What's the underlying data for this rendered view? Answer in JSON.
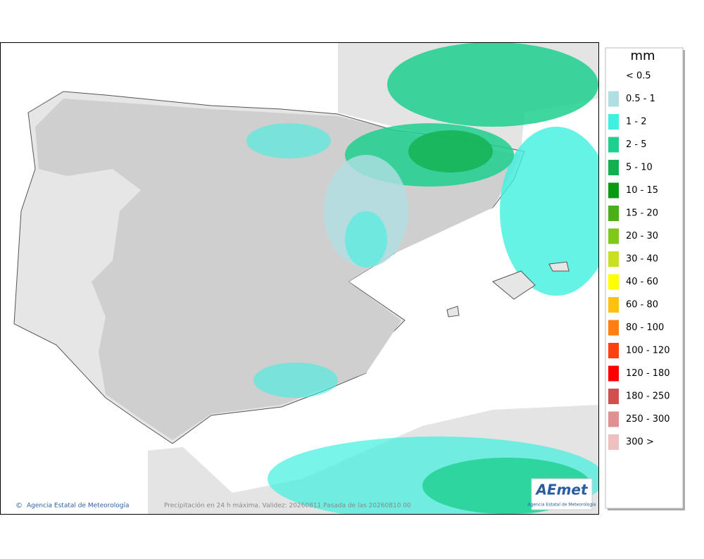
{
  "legend": {
    "title": "mm",
    "items": [
      {
        "label": "< 0.5",
        "color": "#ffffff"
      },
      {
        "label": "0.5 - 1",
        "color": "#b0dfe3"
      },
      {
        "label": "1 - 2",
        "color": "#3ff0e0"
      },
      {
        "label": "2 - 5",
        "color": "#1fcf8f"
      },
      {
        "label": "5 - 10",
        "color": "#13b050"
      },
      {
        "label": "10 - 15",
        "color": "#0a9a12"
      },
      {
        "label": "15 - 20",
        "color": "#4caf1a"
      },
      {
        "label": "20 - 30",
        "color": "#80c81a"
      },
      {
        "label": "30 - 40",
        "color": "#c8e020"
      },
      {
        "label": "40 - 60",
        "color": "#ffff00"
      },
      {
        "label": "60 - 80",
        "color": "#ffc010"
      },
      {
        "label": "80 - 100",
        "color": "#ff8010"
      },
      {
        "label": "100 - 120",
        "color": "#ff4010"
      },
      {
        "label": "120 - 180",
        "color": "#ff0000"
      },
      {
        "label": "180 - 250",
        "color": "#d05050"
      },
      {
        "label": "250 - 300",
        "color": "#e09090"
      },
      {
        "label": "300 >",
        "color": "#f0c0c0"
      }
    ]
  },
  "footer": {
    "credit": "Agencia Estatal de Meteorología",
    "caption": "Precipitación en 24 h máxima. Validez: 20260811 Pasada de las 20260810 00"
  },
  "logo": {
    "name": "AEmet",
    "subtitle": "Agencia Estatal de Meteorología"
  }
}
